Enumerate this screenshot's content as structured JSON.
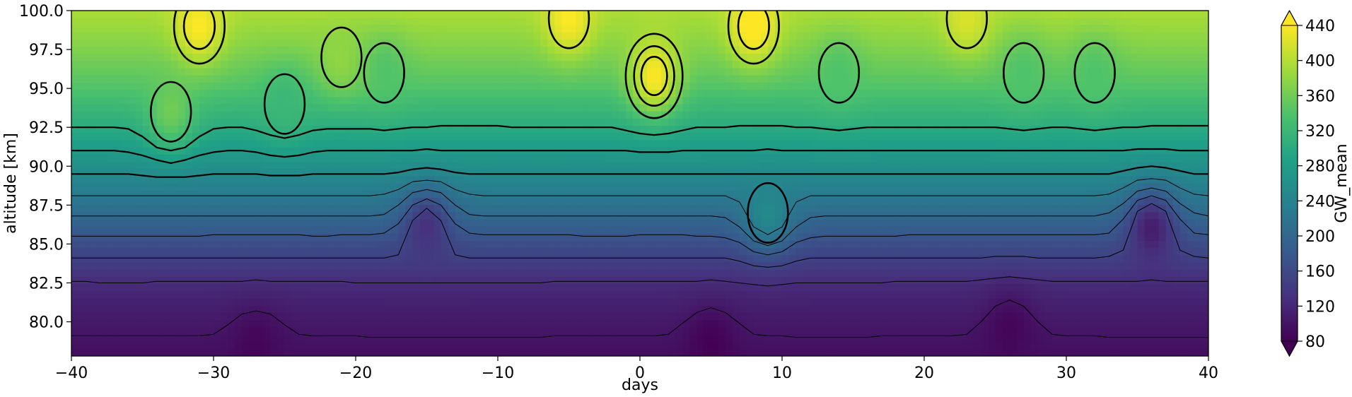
{
  "chart_data": {
    "type": "heatmap",
    "subtype": "filled-contour with line-contour overlay",
    "title": "",
    "xlabel": "days",
    "ylabel": "altitude [km]",
    "colorbar_label": "GW_mean",
    "colormap": "viridis",
    "colormap_stops": [
      "#440154",
      "#46327e",
      "#365c8d",
      "#277f8e",
      "#1fa187",
      "#4ac16d",
      "#a0da39",
      "#fde725"
    ],
    "xlim": [
      -40,
      40
    ],
    "ylim": [
      77.8,
      100.0
    ],
    "x_ticks": [
      -40,
      -30,
      -20,
      -10,
      0,
      10,
      20,
      30,
      40
    ],
    "x_tick_labels": [
      "−40",
      "−30",
      "−20",
      "−10",
      "0",
      "10",
      "20",
      "30",
      "40"
    ],
    "y_ticks": [
      80.0,
      82.5,
      85.0,
      87.5,
      90.0,
      92.5,
      95.0,
      97.5,
      100.0
    ],
    "y_tick_labels": [
      "80.0",
      "82.5",
      "85.0",
      "87.5",
      "90.0",
      "92.5",
      "95.0",
      "97.5",
      "100.0"
    ],
    "colorbar": {
      "range": [
        80,
        440
      ],
      "extend": "both",
      "ticks": [
        80,
        120,
        160,
        200,
        240,
        280,
        320,
        360,
        400,
        440
      ],
      "tick_labels": [
        "80",
        "120",
        "160",
        "200",
        "240",
        "280",
        "320",
        "360",
        "400",
        "440"
      ]
    },
    "grid": false,
    "background_profile": {
      "altitude_km": [
        78,
        80,
        82.5,
        85,
        87.5,
        90,
        92.5,
        95,
        97.5,
        100
      ],
      "gw_mean": [
        95,
        105,
        125,
        165,
        215,
        260,
        300,
        340,
        370,
        395
      ]
    },
    "features": [
      {
        "type": "max",
        "day": -33,
        "altitude_km": 93.5,
        "gw_mean": 360
      },
      {
        "type": "max",
        "day": -31,
        "altitude_km": 99,
        "gw_mean": 440
      },
      {
        "type": "max",
        "day": -25,
        "altitude_km": 94,
        "gw_mean": 320
      },
      {
        "type": "max",
        "day": -21,
        "altitude_km": 97,
        "gw_mean": 380
      },
      {
        "type": "max",
        "day": -18,
        "altitude_km": 96,
        "gw_mean": 340
      },
      {
        "type": "max",
        "day": -5,
        "altitude_km": 99.5,
        "gw_mean": 440
      },
      {
        "type": "max",
        "day": 1,
        "altitude_km": 95.8,
        "gw_mean": 440
      },
      {
        "type": "max",
        "day": 8,
        "altitude_km": 99,
        "gw_mean": 450
      },
      {
        "type": "max",
        "day": 9,
        "altitude_km": 87,
        "gw_mean": 250
      },
      {
        "type": "max",
        "day": 14,
        "altitude_km": 96,
        "gw_mean": 340
      },
      {
        "type": "max",
        "day": 23,
        "altitude_km": 99.5,
        "gw_mean": 420
      },
      {
        "type": "max",
        "day": 27,
        "altitude_km": 96,
        "gw_mean": 340
      },
      {
        "type": "max",
        "day": 32,
        "altitude_km": 96,
        "gw_mean": 340
      },
      {
        "type": "min",
        "day": 5,
        "altitude_km": 78.5,
        "gw_mean": 80
      },
      {
        "type": "min",
        "day": -27,
        "altitude_km": 78.5,
        "gw_mean": 85
      },
      {
        "type": "min",
        "day": 26,
        "altitude_km": 79.5,
        "gw_mean": 85
      },
      {
        "type": "min",
        "day": 36,
        "altitude_km": 86,
        "gw_mean": 110
      },
      {
        "type": "min",
        "day": -15,
        "altitude_km": 86,
        "gw_mean": 130
      }
    ]
  }
}
